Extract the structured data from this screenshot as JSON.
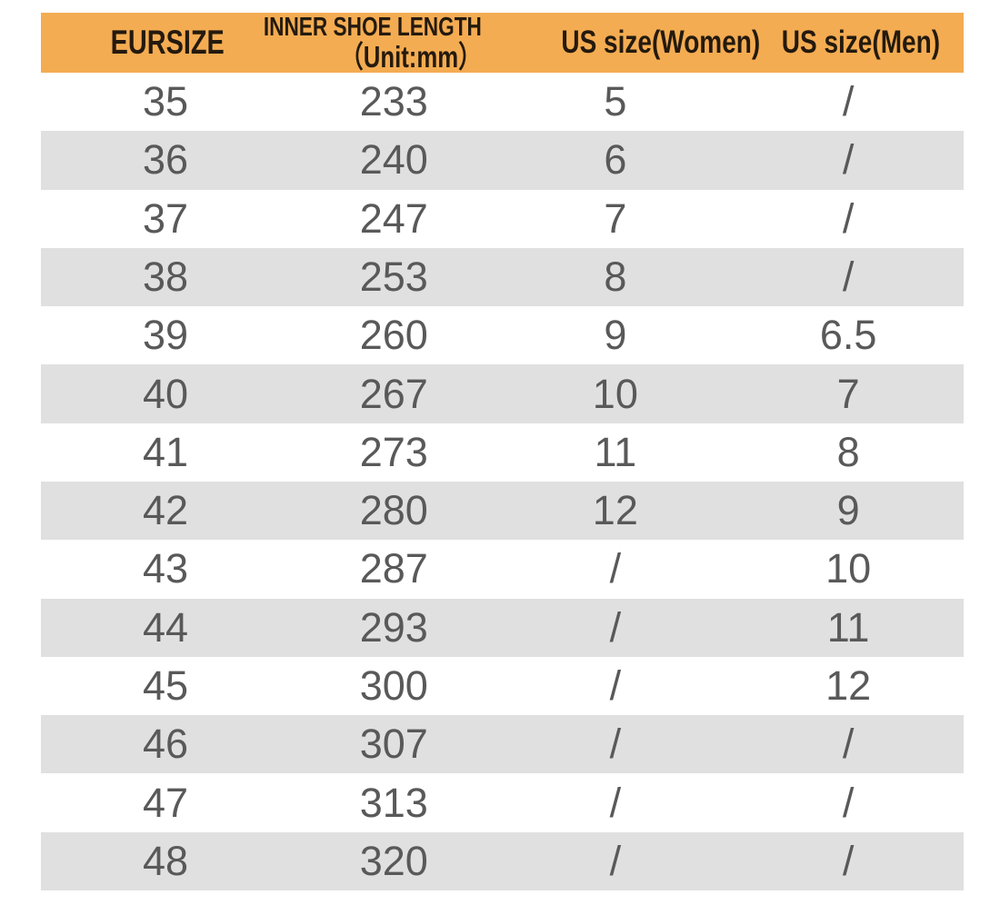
{
  "chart_data": {
    "type": "table",
    "columns": [
      {
        "id": "eursize",
        "label": "EURSIZE"
      },
      {
        "id": "inner-shoe-length",
        "label_line1": "INNER SHOE LENGTH",
        "label_line2": "（Unit:mm）"
      },
      {
        "id": "us-size-women",
        "label": "US size(Women)"
      },
      {
        "id": "us-size-men",
        "label": "US size(Men)"
      }
    ],
    "rows": [
      [
        "35",
        "233",
        "5",
        "/"
      ],
      [
        "36",
        "240",
        "6",
        "/"
      ],
      [
        "37",
        "247",
        "7",
        "/"
      ],
      [
        "38",
        "253",
        "8",
        "/"
      ],
      [
        "39",
        "260",
        "9",
        "6.5"
      ],
      [
        "40",
        "267",
        "10",
        "7"
      ],
      [
        "41",
        "273",
        "11",
        "8"
      ],
      [
        "42",
        "280",
        "12",
        "9"
      ],
      [
        "43",
        "287",
        "/",
        "10"
      ],
      [
        "44",
        "293",
        "/",
        "11"
      ],
      [
        "45",
        "300",
        "/",
        "12"
      ],
      [
        "46",
        "307",
        "/",
        "/"
      ],
      [
        "47",
        "313",
        "/",
        "/"
      ],
      [
        "48",
        "320",
        "/",
        "/"
      ]
    ],
    "layout": {
      "striped": true,
      "stripe_pattern": "even rows (36,38,40,...) shaded"
    }
  },
  "colors": {
    "page_bg": "#FFFFFF",
    "header_bg": "#F4AC52",
    "header_text": "#241A0E",
    "alt_row_bg": "#E0E0E0",
    "cell_text": "#595959"
  }
}
